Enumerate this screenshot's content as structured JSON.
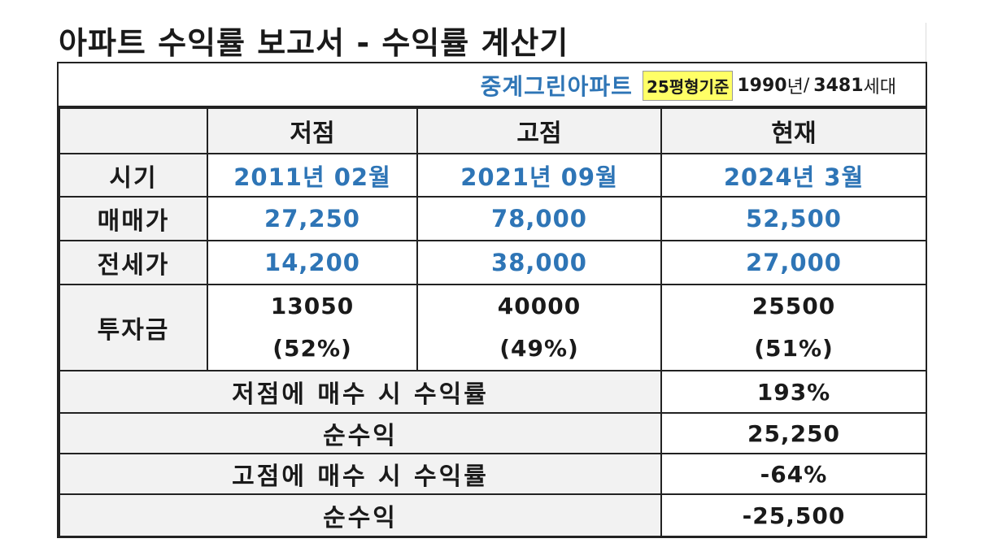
{
  "title": "아파트 수익률 보고서 - 수익률 계산기",
  "info": {
    "apartment_name": "중계그린아파트",
    "size_label": "25평형기준",
    "year": "1990",
    "year_unit": "년",
    "separator": "/",
    "households": "3481",
    "households_unit": "세대"
  },
  "headers": [
    "저점",
    "고점",
    "현재"
  ],
  "rows": {
    "period": {
      "label": "시기",
      "values": [
        "2011년 02월",
        "2021년 09월",
        "2024년 3월"
      ]
    },
    "sale_price": {
      "label": "매매가",
      "values": [
        "27,250",
        "78,000",
        "52,500"
      ]
    },
    "jeonse_price": {
      "label": "전세가",
      "values": [
        "14,200",
        "38,000",
        "27,000"
      ]
    },
    "investment": {
      "label": "투자금",
      "values": [
        "13050",
        "40000",
        "25500"
      ],
      "ratios": [
        "(52%)",
        "(49%)",
        "(51%)"
      ]
    }
  },
  "summary": [
    {
      "label": "저점에 매수 시 수익률",
      "value": "193%"
    },
    {
      "label": "순수익",
      "value": "25,250"
    },
    {
      "label": "고점에 매수 시 수익률",
      "value": "-64%"
    },
    {
      "label": "순수익",
      "value": "-25,500"
    }
  ],
  "colors": {
    "accent_blue": "#2e75b6",
    "highlight_yellow": "#ffff66",
    "header_gray": "#f2f2f2"
  }
}
